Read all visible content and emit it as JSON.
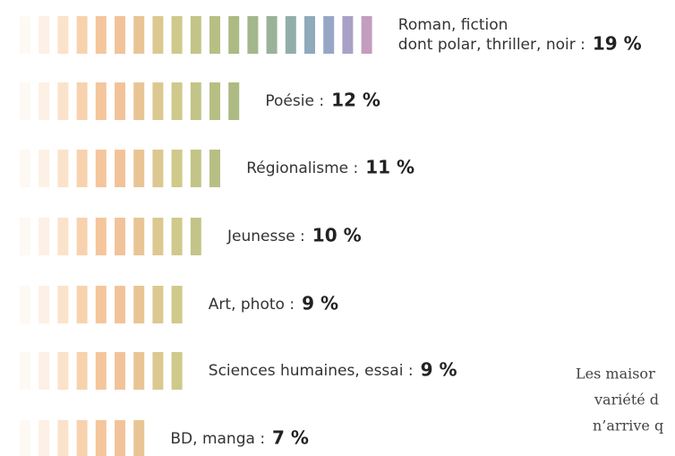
{
  "chart_data": {
    "type": "stripe-bar",
    "categories": [
      "Roman, fiction\ndont polar, thriller, noir :",
      "Poésie :",
      "Régionalisme :",
      "Jeunesse :",
      "Art, photo :",
      "Sciences humaines, essai :",
      "BD, manga :"
    ],
    "values": [
      19,
      12,
      11,
      10,
      9,
      9,
      7
    ],
    "value_labels": [
      "19 %",
      "12 %",
      "11 %",
      "10 %",
      "9 %",
      "9 %",
      "7 %"
    ],
    "stripe_colors": [
      "#fdeee0",
      "#fbe2cc",
      "#f9d6b6",
      "#f7cca4",
      "#f5c59c",
      "#f2c39a",
      "#e9c595",
      "#dcc890",
      "#cfc98b",
      "#c3c487",
      "#b8bf84",
      "#adba84",
      "#a3b68c",
      "#9ab29a",
      "#92aeaa",
      "#8faabb",
      "#98a6c6",
      "#a9a2c6",
      "#c29dbd"
    ],
    "annotation": [
      "Les maisor",
      "variété d",
      "n’arrive q"
    ]
  }
}
